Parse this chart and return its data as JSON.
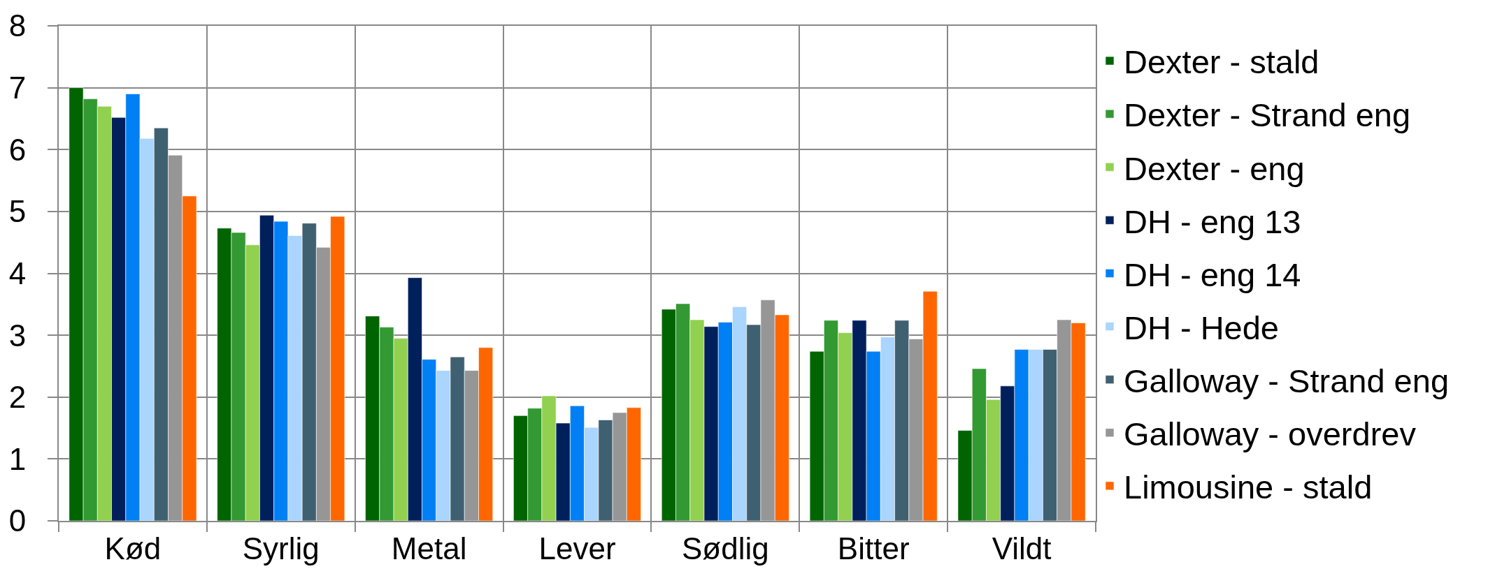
{
  "chart_data": {
    "type": "bar",
    "categories": [
      "Kød",
      "Syrlig",
      "Metal",
      "Lever",
      "Sødlig",
      "Bitter",
      "Vildt"
    ],
    "series": [
      {
        "name": "Dexter - stald",
        "color": "#006400",
        "values": [
          7.0,
          4.73,
          3.31,
          1.7,
          3.42,
          2.74,
          1.46
        ]
      },
      {
        "name": "Dexter - Strand eng",
        "color": "#339933",
        "values": [
          6.82,
          4.66,
          3.13,
          1.82,
          3.51,
          3.24,
          2.46
        ]
      },
      {
        "name": "Dexter - eng",
        "color": "#92d050",
        "values": [
          6.7,
          4.46,
          2.95,
          2.02,
          3.25,
          3.04,
          1.96
        ]
      },
      {
        "name": "DH - eng 13",
        "color": "#00205c",
        "values": [
          6.52,
          4.94,
          3.93,
          1.58,
          3.14,
          3.24,
          2.18
        ]
      },
      {
        "name": "DH - eng 14",
        "color": "#0080f4",
        "values": [
          6.9,
          4.84,
          2.61,
          1.86,
          3.21,
          2.74,
          2.77
        ]
      },
      {
        "name": "DH - Hede",
        "color": "#a9d5ff",
        "values": [
          6.18,
          4.61,
          2.43,
          1.51,
          3.46,
          2.97,
          2.77
        ]
      },
      {
        "name": "Galloway - Strand eng",
        "color": "#3f6070",
        "values": [
          6.35,
          4.81,
          2.65,
          1.63,
          3.17,
          3.24,
          2.77
        ]
      },
      {
        "name": "Galloway - overdrev",
        "color": "#969696",
        "values": [
          5.91,
          4.42,
          2.43,
          1.75,
          3.57,
          2.94,
          3.25
        ]
      },
      {
        "name": "Limousine - stald",
        "color": "#ff6600",
        "values": [
          5.25,
          4.92,
          2.8,
          1.83,
          3.33,
          3.71,
          3.2
        ]
      }
    ],
    "ylim": [
      0,
      8
    ],
    "yticks": [
      0,
      1,
      2,
      3,
      4,
      5,
      6,
      7,
      8
    ],
    "grid": true,
    "legend": "right"
  }
}
